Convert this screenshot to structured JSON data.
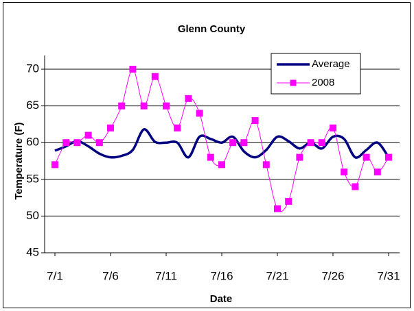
{
  "chart_data": {
    "type": "line",
    "title": "Glenn County",
    "x_label": "Date",
    "y_label": "Temperature (F)",
    "categories": [
      "7/1",
      null,
      null,
      null,
      null,
      "7/6",
      null,
      null,
      null,
      null,
      "7/11",
      null,
      null,
      null,
      null,
      "7/16",
      null,
      null,
      null,
      null,
      "7/21",
      null,
      null,
      null,
      null,
      "7/26",
      null,
      null,
      null,
      null,
      "7/31"
    ],
    "series": [
      {
        "name": "Average",
        "color": "#000080",
        "smooth": true,
        "marker": false,
        "values": [
          58.9,
          59.5,
          60.2,
          59.5,
          58.5,
          58,
          58.2,
          59,
          61.8,
          60.1,
          60,
          60,
          58,
          60.8,
          60.5,
          60,
          60.8,
          58.8,
          58,
          59,
          60.8,
          60.2,
          59.2,
          60,
          59.2,
          60.8,
          60.5,
          58,
          59,
          60,
          58
        ]
      },
      {
        "name": "2008",
        "color": "#ff00ff",
        "smooth": true,
        "marker": true,
        "values": [
          57,
          60,
          60,
          61,
          60,
          62,
          65,
          70,
          65,
          69,
          65,
          62,
          66,
          64,
          58,
          57,
          60,
          60,
          63,
          57,
          51,
          52,
          58,
          60,
          60,
          62,
          56,
          54,
          58,
          56,
          58
        ]
      }
    ],
    "ylim": [
      45,
      70
    ],
    "yticks": [
      45,
      50,
      55,
      60,
      65,
      70
    ],
    "grid": true,
    "legend": "top-right"
  }
}
